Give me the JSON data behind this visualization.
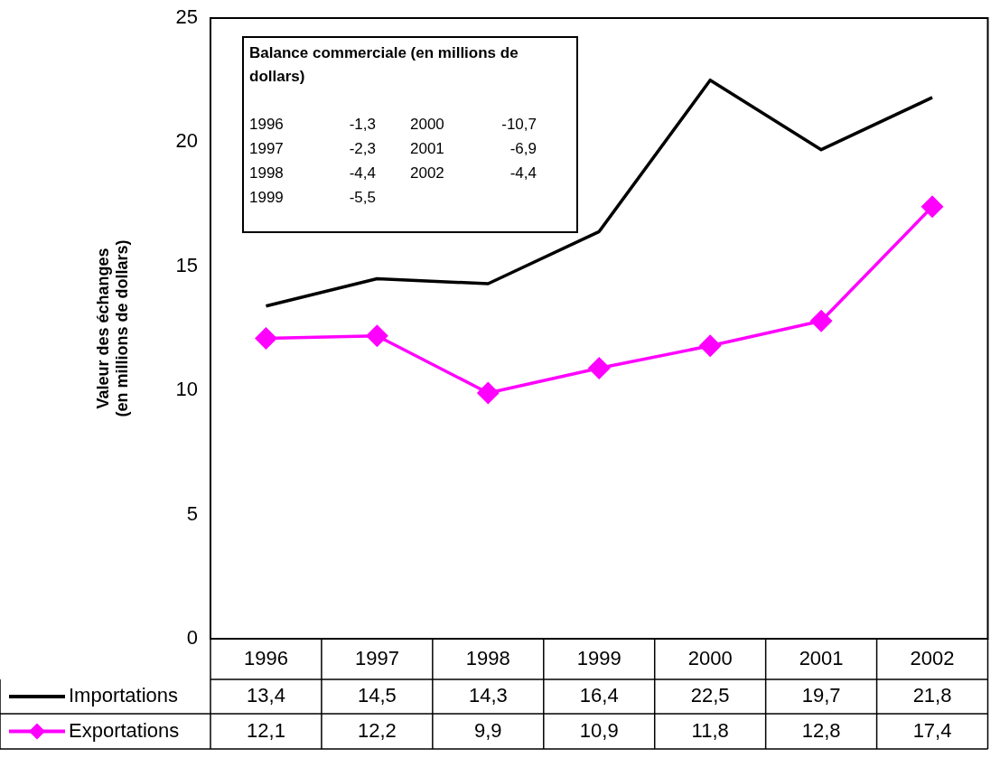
{
  "chart_data": {
    "type": "line",
    "ylabel": "Valeur des échanges (en millions de dollars)",
    "categories": [
      "1996",
      "1997",
      "1998",
      "1999",
      "2000",
      "2001",
      "2002"
    ],
    "series": [
      {
        "name": "Importations",
        "color": "#000000",
        "marker": "none",
        "values": [
          13.4,
          14.5,
          14.3,
          16.4,
          22.5,
          19.7,
          21.8
        ],
        "value_labels": [
          "13,4",
          "14,5",
          "14,3",
          "16,4",
          "22,5",
          "19,7",
          "21,8"
        ]
      },
      {
        "name": "Exportations",
        "color": "#ff00ff",
        "marker": "diamond",
        "values": [
          12.1,
          12.2,
          9.9,
          10.9,
          11.8,
          12.8,
          17.4
        ],
        "value_labels": [
          "12,1",
          "12,2",
          "9,9",
          "10,9",
          "11,8",
          "12,8",
          "17,4"
        ]
      }
    ],
    "ylim": [
      0,
      25
    ],
    "yticks": [
      0,
      5,
      10,
      15,
      20,
      25
    ],
    "grid": false,
    "legend": "bottom left",
    "line_style": "solid",
    "annotations": [
      "Balance commerciale (en millions de dollars)",
      "1996 -1,3",
      "1997 -2,3",
      "1998 -4,4",
      "1999 -5,5",
      "2000 -10,7",
      "2001 -6,9",
      "2002 -4,4"
    ]
  }
}
